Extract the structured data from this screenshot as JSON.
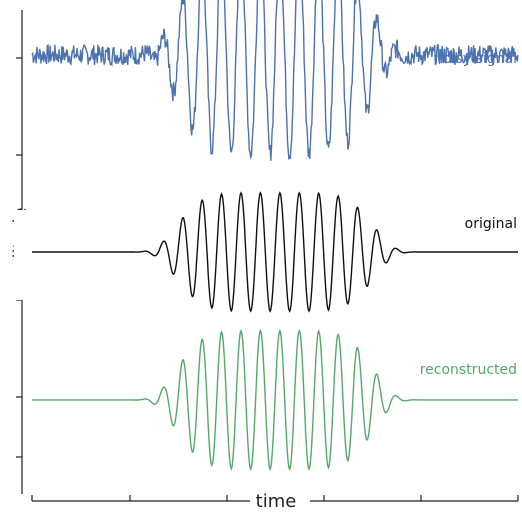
{
  "chart_data": {
    "type": "line",
    "xlabel": "time",
    "ylabel": "amplitude",
    "grid": false,
    "legend": "inline-right",
    "x_range": [
      -1,
      1
    ],
    "series": [
      {
        "name": "noisy signal",
        "color": "#4c72b0",
        "offset": 2.0,
        "start_x": -1.0,
        "summary": {
          "envelope_center": 0.0,
          "peak_amplitude": 1.0,
          "noise_std": 0.08
        }
      },
      {
        "name": "original",
        "color": "#111111",
        "offset": 0.0,
        "start_x": -1.0,
        "summary": {
          "envelope_center": 0.0,
          "peak_amplitude": 0.6
        }
      },
      {
        "name": "reconstructed",
        "color": "#55a868",
        "offset": -1.5,
        "start_x": -1.0,
        "summary": {
          "envelope_center": 0.0,
          "peak_amplitude": 0.65
        }
      }
    ]
  }
}
